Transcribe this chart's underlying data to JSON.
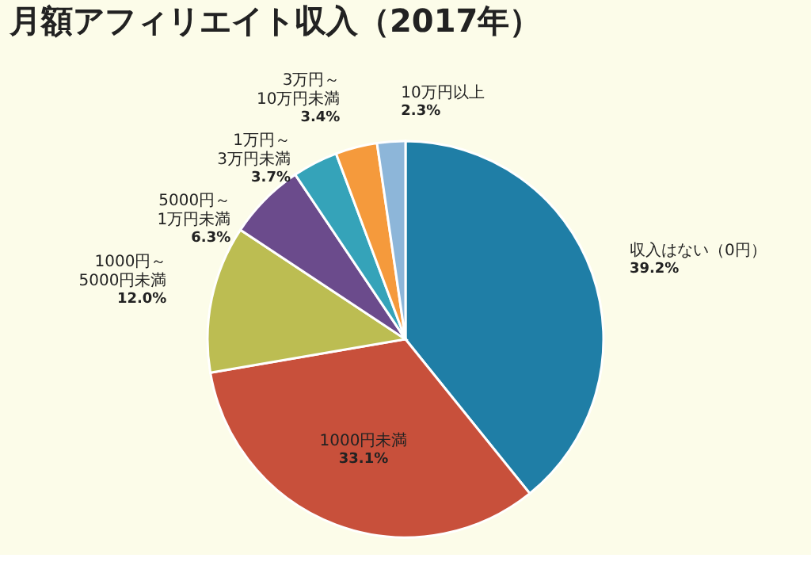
{
  "chart_data": {
    "type": "pie",
    "title": "月額アフィリエイト収入（2017年）",
    "categories": [
      "収入はない（0円）",
      "1000円未満",
      "1000円～5000円未満",
      "5000円～1万円未満",
      "1万円～3万円未満",
      "3万円～10万円未満",
      "10万円以上"
    ],
    "values": [
      39.2,
      33.1,
      12.0,
      6.3,
      3.7,
      3.4,
      2.3
    ],
    "value_labels": [
      "39.2%",
      "33.1%",
      "12.0%",
      "6.3%",
      "3.7%",
      "3.4%",
      "2.3%"
    ],
    "colors": [
      "#1f7ea6",
      "#c8503b",
      "#bcbd52",
      "#6b4b8c",
      "#35a3b9",
      "#f59a3c",
      "#8db6d9"
    ],
    "legend": false
  }
}
